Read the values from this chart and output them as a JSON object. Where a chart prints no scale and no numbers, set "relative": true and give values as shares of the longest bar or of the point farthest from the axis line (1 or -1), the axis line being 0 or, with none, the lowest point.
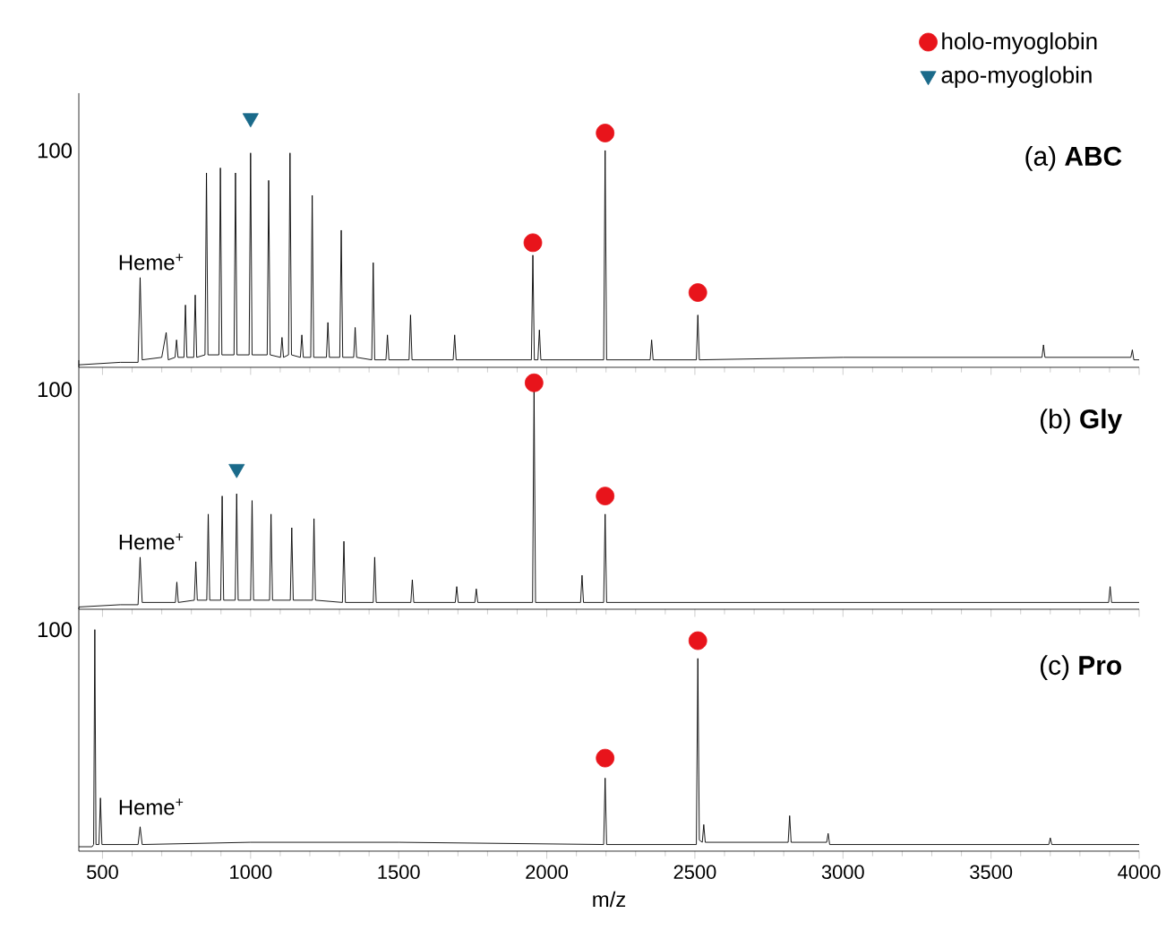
{
  "chart_data": [
    {
      "type": "line",
      "title": "(a) **ABC**",
      "relative": true,
      "xlim": [
        420,
        4000
      ],
      "xticks": [
        500,
        1000,
        1500,
        2000,
        2500,
        3000,
        3500,
        4000
      ],
      "tick_labels": false,
      "legend": "top right",
      "annotations": [
        "100",
        "Heme$^{+}$"
      ],
      "series": [
        {
          "color": "#000000",
          "marker": "none",
          "x": [
            420,
            560,
            620,
            627,
            634,
            700,
            715,
            722,
            745,
            750,
            755,
            775,
            780,
            785,
            808,
            813,
            818,
            846,
            851,
            856,
            893,
            898,
            903,
            944,
            949,
            954,
            995,
            1000,
            1005,
            1056,
            1061,
            1066,
            1101,
            1106,
            1111,
            1128,
            1133,
            1138,
            1168,
            1173,
            1178,
            1203,
            1208,
            1213,
            1256,
            1261,
            1266,
            1301,
            1306,
            1311,
            1348,
            1353,
            1358,
            1409,
            1414,
            1419,
            1457,
            1462,
            1467,
            1535,
            1540,
            1545,
            1684,
            1689,
            1694,
            1800,
            1948,
            1953,
            1958,
            1970,
            1975,
            1980,
            2100,
            2192,
            2197,
            2202,
            2349,
            2354,
            2359,
            2505,
            2510,
            2515,
            3000,
            3672,
            3677,
            3682,
            3972,
            3977,
            3982,
            4000
          ],
          "values": [
            0.01,
            0.02,
            0.02,
            0.36,
            0.03,
            0.04,
            0.14,
            0.03,
            0.04,
            0.11,
            0.04,
            0.04,
            0.25,
            0.04,
            0.04,
            0.29,
            0.04,
            0.05,
            0.78,
            0.05,
            0.05,
            0.8,
            0.05,
            0.05,
            0.78,
            0.05,
            0.05,
            0.86,
            0.05,
            0.05,
            0.75,
            0.05,
            0.04,
            0.12,
            0.04,
            0.05,
            0.86,
            0.05,
            0.04,
            0.13,
            0.04,
            0.04,
            0.69,
            0.04,
            0.04,
            0.18,
            0.04,
            0.04,
            0.55,
            0.04,
            0.04,
            0.16,
            0.04,
            0.03,
            0.42,
            0.03,
            0.03,
            0.13,
            0.03,
            0.03,
            0.21,
            0.03,
            0.03,
            0.13,
            0.03,
            0.03,
            0.03,
            0.45,
            0.03,
            0.03,
            0.15,
            0.03,
            0.03,
            0.03,
            0.87,
            0.03,
            0.03,
            0.11,
            0.03,
            0.03,
            0.21,
            0.03,
            0.04,
            0.04,
            0.09,
            0.04,
            0.04,
            0.07,
            0.03,
            0.03
          ]
        },
        {
          "type": "scatter",
          "name": "holo-myoglobin",
          "color": "#e8141b",
          "marker": "circle",
          "x": [
            1953,
            2197,
            2510
          ],
          "values": [
            0.5,
            0.94,
            0.3
          ]
        },
        {
          "type": "scatter",
          "name": "apo-myoglobin",
          "color": "#1a6a8a",
          "marker": "triangle",
          "x": [
            1000
          ],
          "values": [
            1.0
          ]
        }
      ]
    },
    {
      "type": "line",
      "title": "(b) **Gly**",
      "relative": true,
      "xlim": [
        420,
        4000
      ],
      "xticks": [
        500,
        1000,
        1500,
        2000,
        2500,
        3000,
        3500,
        4000
      ],
      "tick_labels": false,
      "annotations": [
        "100",
        "Heme$^{+}$"
      ],
      "series": [
        {
          "color": "#000000",
          "marker": "none",
          "x": [
            420,
            560,
            620,
            627,
            634,
            746,
            751,
            756,
            810,
            815,
            820,
            852,
            857,
            862,
            899,
            904,
            909,
            948,
            953,
            958,
            1000,
            1005,
            1010,
            1064,
            1069,
            1074,
            1134,
            1139,
            1144,
            1209,
            1214,
            1219,
            1310,
            1315,
            1320,
            1414,
            1419,
            1424,
            1541,
            1546,
            1551,
            1691,
            1696,
            1701,
            1757,
            1762,
            1767,
            1952,
            1957,
            1962,
            2114,
            2119,
            2124,
            2192,
            2197,
            2202,
            3000,
            3897,
            3902,
            3907,
            4000
          ],
          "values": [
            0.01,
            0.02,
            0.02,
            0.23,
            0.03,
            0.03,
            0.12,
            0.03,
            0.04,
            0.21,
            0.04,
            0.04,
            0.42,
            0.04,
            0.04,
            0.5,
            0.04,
            0.04,
            0.51,
            0.04,
            0.04,
            0.48,
            0.04,
            0.04,
            0.42,
            0.04,
            0.04,
            0.36,
            0.04,
            0.04,
            0.4,
            0.04,
            0.03,
            0.3,
            0.03,
            0.03,
            0.23,
            0.03,
            0.03,
            0.13,
            0.03,
            0.03,
            0.1,
            0.03,
            0.03,
            0.09,
            0.03,
            0.03,
            0.97,
            0.03,
            0.03,
            0.15,
            0.03,
            0.03,
            0.42,
            0.03,
            0.03,
            0.03,
            0.1,
            0.03,
            0.03
          ]
        },
        {
          "type": "scatter",
          "color": "#e8141b",
          "marker": "circle",
          "x": [
            1957,
            2197
          ],
          "values": [
            1.0,
            0.5
          ]
        },
        {
          "type": "scatter",
          "color": "#1a6a8a",
          "marker": "triangle",
          "x": [
            953
          ],
          "values": [
            0.62
          ]
        }
      ]
    },
    {
      "type": "line",
      "title": "(c) **Pro**",
      "relative": true,
      "xlim": [
        420,
        4000
      ],
      "xticks": [
        500,
        1000,
        1500,
        2000,
        2500,
        3000,
        3500,
        4000
      ],
      "tick_labels": "x",
      "xlabel": "m/z",
      "annotations": [
        "100",
        "Heme$^{+}$"
      ],
      "series": [
        {
          "color": "#000000",
          "marker": "none",
          "x": [
            420,
            465,
            470,
            474,
            478,
            488,
            493,
            498,
            620,
            627,
            634,
            1000,
            1500,
            2192,
            2197,
            2202,
            2505,
            2510,
            2515,
            2525,
            2530,
            2535,
            2815,
            2820,
            2825,
            2945,
            2950,
            2955,
            3695,
            3700,
            3705,
            4000
          ],
          "values": [
            0.02,
            0.02,
            0.03,
            1.0,
            0.03,
            0.03,
            0.24,
            0.03,
            0.03,
            0.11,
            0.03,
            0.04,
            0.04,
            0.03,
            0.33,
            0.03,
            0.03,
            0.87,
            0.05,
            0.04,
            0.12,
            0.04,
            0.04,
            0.16,
            0.04,
            0.04,
            0.08,
            0.03,
            0.03,
            0.06,
            0.03,
            0.03
          ]
        },
        {
          "type": "scatter",
          "color": "#e8141b",
          "marker": "circle",
          "x": [
            2197,
            2510
          ],
          "values": [
            0.42,
            0.95
          ]
        }
      ]
    }
  ]
}
